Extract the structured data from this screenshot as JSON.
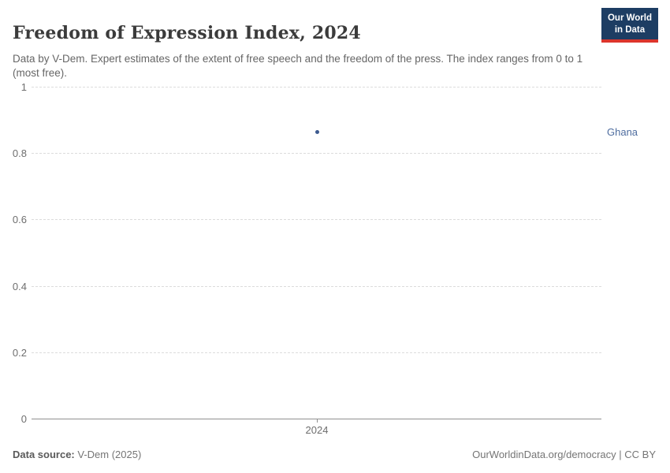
{
  "header": {
    "title": "Freedom of Expression Index, 2024",
    "subtitle": "Data by V-Dem. Expert estimates of the extent of free speech and the freedom of the press. The index ranges from 0 to 1 (most free).",
    "logo": {
      "line1": "Our World",
      "line2": "in Data",
      "background_color": "#1d3d63",
      "accent_color": "#dc352c"
    }
  },
  "chart_data": {
    "type": "scatter",
    "title": "Freedom of Expression Index, 2024",
    "x": [
      2024
    ],
    "series": [
      {
        "name": "Ghana",
        "values": [
          0.86
        ],
        "point_color": "#3d5a8f",
        "label_color": "#4e6d9f"
      }
    ],
    "xlabel": "",
    "ylabel": "",
    "ylim": [
      0,
      1
    ],
    "yticks": [
      "1",
      "0.8",
      "0.6",
      "0.4",
      "0.2",
      "0"
    ],
    "xticks": [
      "2024"
    ],
    "grid": "horizontal dashed",
    "legend_position": "right-of-point-label",
    "gridline_color": "#dcdcdc",
    "axis_color": "#8f8f8f"
  },
  "footer": {
    "source_label": "Data source:",
    "source_value": " V-Dem (2025)",
    "credit": "OurWorldinData.org/democracy | CC BY"
  }
}
